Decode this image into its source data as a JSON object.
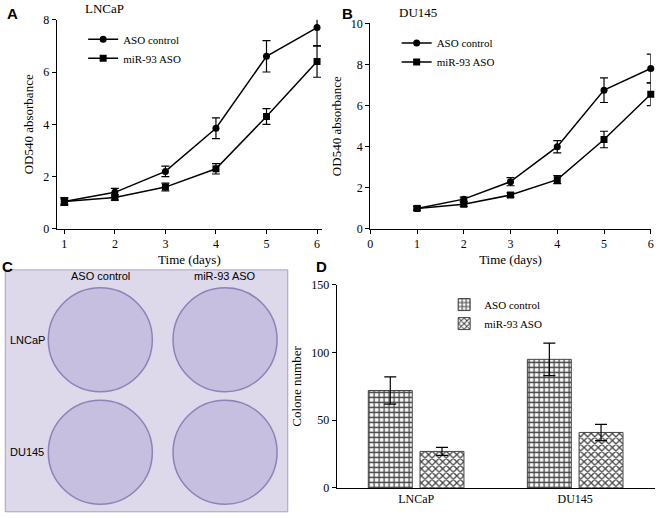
{
  "chart_data": [
    {
      "type": "line",
      "panel": "A",
      "title": "LNCaP",
      "x_label": "Time (days)",
      "y_label": "OD540 absorbance",
      "x": [
        1,
        2,
        3,
        4,
        5,
        6
      ],
      "xlim": [
        0.85,
        6.1
      ],
      "xticks": [
        1,
        2,
        3,
        4,
        5,
        6
      ],
      "ylim": [
        0,
        8
      ],
      "yticks": [
        0,
        2,
        4,
        6,
        8
      ],
      "grid": false,
      "legend": "upper left",
      "series": [
        {
          "name": "ASO control",
          "color": "#000000",
          "marker": "circle",
          "line_style": "solid",
          "values": [
            1.05,
            1.4,
            2.2,
            3.85,
            6.6,
            7.7
          ],
          "errors": [
            0.15,
            0.15,
            0.2,
            0.4,
            0.6,
            0.7
          ]
        },
        {
          "name": "miR-93 ASO",
          "color": "#000000",
          "marker": "square",
          "line_style": "solid",
          "values": [
            1.05,
            1.2,
            1.6,
            2.3,
            4.3,
            6.4
          ],
          "errors": [
            0.1,
            0.1,
            0.15,
            0.2,
            0.3,
            0.6
          ]
        }
      ]
    },
    {
      "type": "line",
      "panel": "B",
      "title": "DU145",
      "x_label": "Time (days)",
      "y_label": "OD540 absorbance",
      "x": [
        1,
        2,
        3,
        4,
        5,
        6
      ],
      "xlim": [
        0,
        6
      ],
      "xticks": [
        0,
        1,
        2,
        3,
        4,
        5,
        6
      ],
      "ylim": [
        0,
        10
      ],
      "yticks": [
        0,
        2,
        4,
        6,
        8,
        10
      ],
      "grid": false,
      "legend": "upper left",
      "series": [
        {
          "name": "ASO control",
          "color": "#000000",
          "marker": "circle",
          "line_style": "solid",
          "values": [
            1.0,
            1.45,
            2.3,
            4.0,
            6.75,
            7.8
          ],
          "errors": [
            0.1,
            0.1,
            0.2,
            0.3,
            0.6,
            0.7
          ]
        },
        {
          "name": "miR-93 ASO",
          "color": "#000000",
          "marker": "square",
          "line_style": "solid",
          "values": [
            1.0,
            1.2,
            1.65,
            2.4,
            4.35,
            6.55
          ],
          "errors": [
            0.1,
            0.1,
            0.1,
            0.2,
            0.4,
            0.55
          ]
        }
      ]
    },
    {
      "type": "bar",
      "panel": "D",
      "y_label": "Colone number",
      "categories": [
        "LNCaP",
        "DU145"
      ],
      "ylim": [
        0,
        150
      ],
      "yticks": [
        0,
        50,
        100,
        150
      ],
      "grid": false,
      "legend": "upper center",
      "series": [
        {
          "name": "ASO control",
          "color": "#444444",
          "values": [
            72,
            95
          ],
          "errors": [
            10,
            12
          ]
        },
        {
          "name": "miR-93 ASO",
          "color": "#444444",
          "values": [
            27,
            41
          ],
          "errors": [
            3,
            6
          ]
        }
      ]
    }
  ],
  "image": {
    "panel": "C",
    "column_labels": [
      "ASO control",
      "miR-93 ASO"
    ],
    "row_labels": [
      "LNCaP",
      "DU145"
    ]
  }
}
